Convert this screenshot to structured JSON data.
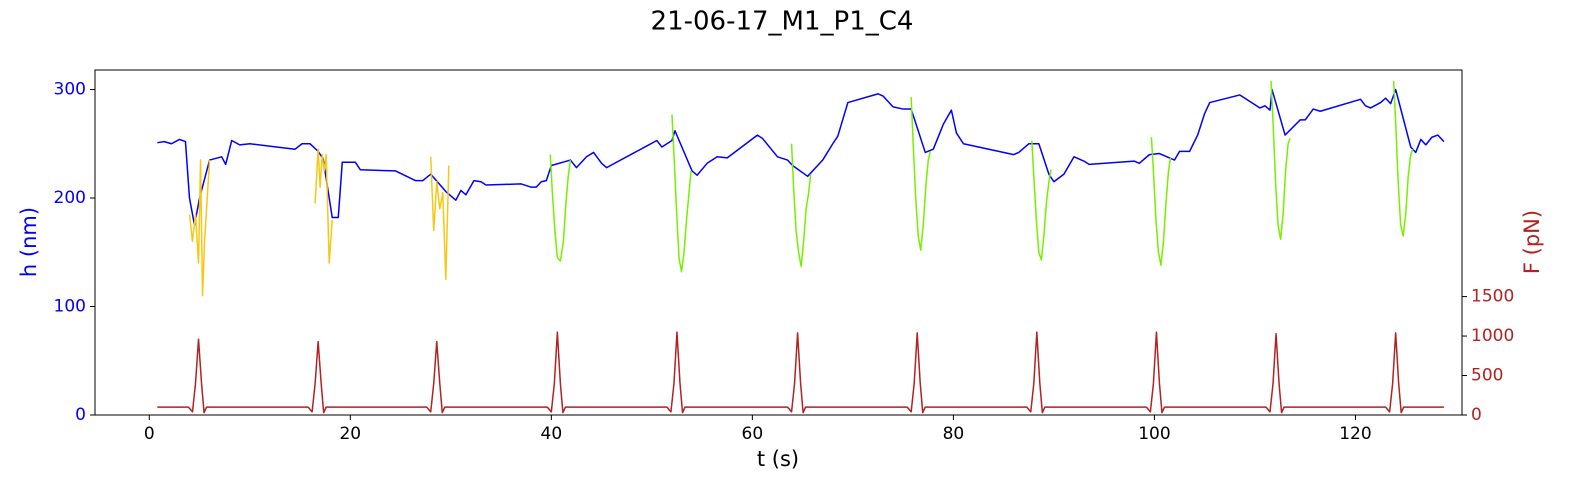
{
  "chart_data": {
    "type": "line",
    "title": "21-06-17_M1_P1_C4",
    "xlabel": "t (s)",
    "ylabel": "h (nm)",
    "y2label": "F (pN)",
    "ycolor": "#0000ff",
    "y2color": "#b22222",
    "xlim": [
      -5.4,
      130.6
    ],
    "xticks": [
      0,
      20,
      40,
      60,
      80,
      100,
      120
    ],
    "ylim": [
      0,
      318
    ],
    "yticks": [
      0,
      100,
      200,
      300
    ],
    "y2lim": [
      0,
      4370
    ],
    "y2ticks": [
      0,
      500,
      1000,
      1500
    ],
    "series": [
      {
        "color": "#0000ff",
        "axis": "y",
        "x": [
          0.8,
          1.5,
          2.2,
          3.0,
          3.6,
          4.0,
          4.5,
          5.0,
          6.0,
          7.2,
          7.6,
          8.2,
          9.0,
          10.0,
          14.5,
          15.2,
          16.0,
          16.8,
          17.3,
          18.2,
          18.8,
          19.2,
          20.5,
          21.0,
          24.5,
          26.5,
          27.2,
          28.0,
          29.5,
          30.5,
          31.0,
          31.5,
          32.3,
          33.0,
          33.5,
          37.0,
          38.0,
          38.5,
          39.0,
          39.5,
          40.0,
          41.9,
          42.5,
          43.5,
          44.2,
          45.0,
          45.5,
          49.5,
          50.5,
          51.0,
          52.0,
          52.3,
          54.0,
          54.5,
          55.5,
          56.5,
          57.5,
          60.5,
          61.0,
          62.5,
          63.5,
          64.0,
          65.5,
          67.0,
          68.0,
          68.5,
          69.5,
          72.5,
          73.0,
          74.0,
          75.0,
          75.8,
          77.2,
          78.0,
          79.0,
          79.8,
          80.3,
          81.0,
          86.0,
          86.5,
          87.5,
          88.5,
          89.5,
          90.0,
          91.0,
          92.0,
          93.0,
          93.5,
          98.0,
          98.5,
          99.5,
          100.5,
          101.5,
          102.0,
          102.5,
          103.5,
          104.3,
          105.0,
          105.5,
          108.5,
          110.5,
          111.0,
          111.5,
          111.7,
          113.0,
          114.5,
          115.0,
          115.8,
          116.5,
          120.5,
          121.0,
          121.5,
          122.5,
          123.0,
          123.5,
          124.0,
          125.5,
          126.0,
          126.5,
          127.0,
          127.6,
          128.2,
          128.8
        ],
        "values": [
          251,
          252,
          250,
          254,
          252,
          200,
          175,
          200,
          235,
          238,
          231,
          253,
          249,
          250,
          245,
          250,
          250,
          243,
          236,
          182,
          182,
          233,
          233,
          226,
          225,
          216,
          216,
          222,
          206,
          198,
          207,
          203,
          216,
          215,
          212,
          213,
          210,
          210,
          215,
          216,
          230,
          235,
          228,
          238,
          242,
          232,
          228,
          248,
          253,
          247,
          253,
          262,
          225,
          221,
          232,
          238,
          237,
          258,
          255,
          238,
          235,
          230,
          220,
          235,
          250,
          257,
          288,
          296,
          294,
          284,
          282,
          282,
          242,
          245,
          268,
          281,
          260,
          250,
          240,
          242,
          250,
          250,
          222,
          215,
          222,
          238,
          234,
          231,
          234,
          232,
          240,
          241,
          237,
          235,
          243,
          243,
          258,
          278,
          288,
          295,
          283,
          285,
          281,
          300,
          258,
          272,
          272,
          282,
          280,
          291,
          285,
          283,
          288,
          292,
          287,
          300,
          247,
          242,
          254,
          249,
          256,
          258,
          252
        ]
      },
      {
        "color": "#f7c716",
        "axis": "y",
        "x": [
          4.0,
          4.3,
          4.6,
          4.9,
          5.1,
          5.3,
          5.5,
          5.7,
          6.0,
          11.0,
          16.5,
          16.8,
          17.0,
          17.2,
          17.4,
          17.6,
          17.9,
          18.2,
          23.0,
          28.0,
          28.3,
          28.6,
          28.9,
          29.2,
          29.5,
          29.8
        ],
        "values": [
          185,
          160,
          185,
          140,
          235,
          110,
          160,
          190,
          235,
          null,
          195,
          245,
          210,
          240,
          225,
          240,
          140,
          180,
          null,
          238,
          170,
          215,
          190,
          205,
          125,
          230
        ]
      },
      {
        "color": "#77f000",
        "axis": "y",
        "x": [
          39.9,
          40.1,
          40.35,
          40.6,
          40.9,
          41.2,
          41.45,
          41.7,
          41.9,
          47.0,
          52.0,
          52.2,
          52.45,
          52.7,
          52.95,
          53.2,
          53.45,
          53.7,
          53.9,
          59.0,
          63.9,
          64.1,
          64.35,
          64.6,
          64.85,
          65.1,
          65.35,
          65.6,
          65.8,
          71.0,
          75.8,
          76.0,
          76.25,
          76.5,
          76.75,
          77.0,
          77.25,
          77.5,
          77.7,
          83.0,
          87.8,
          88.0,
          88.25,
          88.5,
          88.75,
          89.0,
          89.25,
          89.5,
          89.7,
          95.0,
          99.7,
          99.9,
          100.15,
          100.4,
          100.65,
          100.9,
          101.15,
          101.4,
          101.6,
          107.0,
          111.6,
          111.8,
          112.05,
          112.3,
          112.55,
          112.8,
          113.05,
          113.3,
          113.5,
          119.0,
          123.8,
          124.0,
          124.25,
          124.5,
          124.75,
          125.0,
          125.25,
          125.5,
          125.7
        ],
        "values": [
          240,
          205,
          170,
          145,
          142,
          160,
          195,
          222,
          235,
          null,
          277,
          240,
          190,
          145,
          132,
          150,
          180,
          205,
          225,
          null,
          250,
          210,
          170,
          150,
          137,
          160,
          190,
          205,
          222,
          null,
          293,
          250,
          200,
          165,
          152,
          175,
          210,
          235,
          243,
          null,
          253,
          220,
          180,
          150,
          143,
          165,
          195,
          215,
          226,
          null,
          256,
          225,
          180,
          150,
          138,
          160,
          195,
          225,
          237,
          null,
          308,
          270,
          215,
          175,
          162,
          185,
          225,
          250,
          255,
          null,
          308,
          270,
          215,
          175,
          165,
          185,
          220,
          240,
          245
        ]
      },
      {
        "color": "#b22222",
        "axis": "y2",
        "x": [
          0.8,
          3.9,
          4.3,
          4.6,
          4.9,
          5.2,
          5.45,
          5.7,
          15.8,
          16.2,
          16.5,
          16.8,
          17.1,
          17.35,
          17.6,
          27.6,
          28.0,
          28.3,
          28.6,
          28.9,
          29.15,
          29.4,
          39.6,
          40.0,
          40.3,
          40.6,
          40.9,
          41.15,
          41.4,
          51.5,
          51.9,
          52.2,
          52.5,
          52.8,
          53.05,
          53.3,
          63.5,
          63.9,
          64.2,
          64.5,
          64.8,
          65.05,
          65.3,
          75.4,
          75.8,
          76.1,
          76.4,
          76.7,
          76.95,
          77.2,
          87.3,
          87.7,
          88.0,
          88.3,
          88.6,
          88.85,
          89.1,
          99.2,
          99.6,
          99.9,
          100.2,
          100.5,
          100.75,
          101.0,
          111.1,
          111.5,
          111.8,
          112.1,
          112.4,
          112.65,
          112.9,
          123.0,
          123.4,
          123.7,
          124.0,
          124.3,
          124.55,
          124.8,
          128.8
        ],
        "values": [
          100,
          100,
          40,
          400,
          960,
          400,
          30,
          100,
          100,
          40,
          400,
          930,
          400,
          30,
          100,
          100,
          40,
          400,
          930,
          400,
          30,
          100,
          100,
          40,
          400,
          1050,
          400,
          30,
          100,
          100,
          40,
          400,
          1050,
          400,
          30,
          100,
          100,
          40,
          400,
          1040,
          400,
          30,
          100,
          100,
          40,
          400,
          1040,
          400,
          30,
          100,
          100,
          40,
          400,
          1050,
          400,
          30,
          100,
          100,
          40,
          400,
          1050,
          400,
          30,
          100,
          100,
          40,
          400,
          1030,
          400,
          30,
          100,
          100,
          40,
          400,
          1040,
          400,
          30,
          100,
          100
        ]
      }
    ]
  }
}
